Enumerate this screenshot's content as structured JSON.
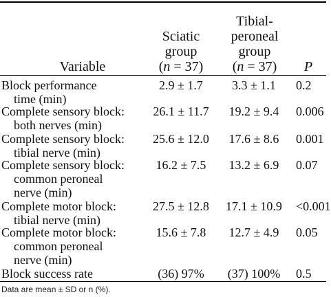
{
  "headers": {
    "variable": "Variable",
    "sciatic": [
      "Sciatic",
      "group",
      "(n = 37)"
    ],
    "tibial": [
      "Tibial-",
      "peroneal",
      "group",
      "(n = 37)"
    ],
    "p": "P"
  },
  "rows": [
    {
      "label1": "Block performance",
      "label2": "time (min)",
      "sciatic": "2.9 ± 1.7",
      "tibial": "3.3 ± 1.1",
      "p": "0.2"
    },
    {
      "label1": "Complete sensory block:",
      "label2": "both nerves (min)",
      "sciatic": "26.1 ± 11.7",
      "tibial": "19.2 ± 9.4",
      "p": "0.006"
    },
    {
      "label1": "Complete sensory block:",
      "label2": "tibial nerve (min)",
      "sciatic": "25.6 ± 12.0",
      "tibial": "17.6 ± 8.6",
      "p": "0.001"
    },
    {
      "label1": "Complete sensory block:",
      "label2": "common peroneal",
      "label3": "nerve (min)",
      "sciatic": "16.2 ± 7.5",
      "tibial": "13.2 ± 6.9",
      "p": "0.07"
    },
    {
      "label1": "Complete motor block:",
      "label2": "tibial nerve (min)",
      "sciatic": "27.5 ± 12.8",
      "tibial": "17.1 ± 10.9",
      "p": "<0.001"
    },
    {
      "label1": "Complete motor block:",
      "label2": "common peroneal",
      "label3": "nerve (min)",
      "sciatic": "15.6 ± 7.8",
      "tibial": "12.7 ± 4.9",
      "p": "0.05"
    },
    {
      "label1": "Block success rate",
      "sciatic": "(36) 97%",
      "tibial": "(37) 100%",
      "p": "0.5"
    }
  ],
  "footnote": "Data are mean ± SD or n (%)."
}
